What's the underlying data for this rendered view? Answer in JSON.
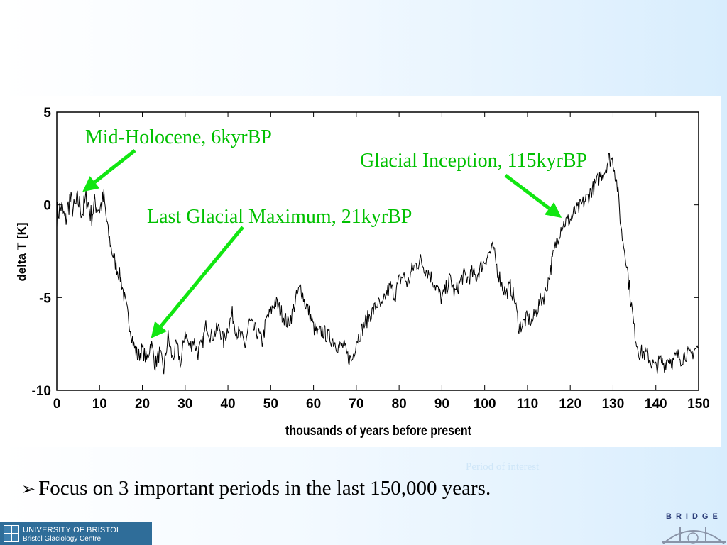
{
  "slide": {
    "bullet_mark": "➢",
    "bullet_text": "Focus on 3 important periods in the last 150,000 years.",
    "faint_text": "Period of interest"
  },
  "logos": {
    "university": "UNIVERSITY OF BRISTOL",
    "centre": "Bristol Glaciology Centre",
    "bridge": "BRIDGE"
  },
  "colors": {
    "annotation": "#00c000",
    "arrow": "#11e611",
    "line": "#000000"
  },
  "annotations": [
    {
      "id": "mid-holocene",
      "label": "Mid-Holocene, 6kyrBP",
      "target_x": 6,
      "target_y": 0.7
    },
    {
      "id": "lgm",
      "label": "Last Glacial Maximum, 21kyrBP",
      "target_x": 22,
      "target_y": -7.2
    },
    {
      "id": "glacial-inception",
      "label": "Glacial Inception, 115kyrBP",
      "target_x": 118,
      "target_y": -0.7
    }
  ],
  "chart_data": {
    "type": "line",
    "xlabel": "thousands of years before present",
    "ylabel": "delta T [K]",
    "xlim": [
      0,
      150
    ],
    "ylim": [
      -10,
      5
    ],
    "xticks": [
      0,
      10,
      20,
      30,
      40,
      50,
      60,
      70,
      80,
      90,
      100,
      110,
      120,
      130,
      140,
      150
    ],
    "yticks": [
      5,
      0,
      -5,
      -10
    ],
    "grid": false,
    "series": [
      {
        "x": [
          0,
          1,
          2,
          3,
          4,
          5,
          6,
          7,
          8,
          9,
          10,
          11,
          12,
          13,
          14,
          15,
          16,
          17,
          18,
          19,
          20,
          21,
          22,
          23,
          24,
          25,
          26,
          27,
          28,
          29,
          30,
          31,
          32,
          33,
          34,
          35,
          36,
          37,
          38,
          39,
          40,
          41,
          42,
          43,
          44,
          45,
          46,
          47,
          48,
          49,
          50,
          51,
          52,
          53,
          54,
          55,
          56,
          57,
          58,
          59,
          60,
          61,
          62,
          63,
          64,
          65,
          66,
          67,
          68,
          69,
          70,
          71,
          72,
          73,
          74,
          75,
          76,
          77,
          78,
          79,
          80,
          81,
          82,
          83,
          84,
          85,
          86,
          87,
          88,
          89,
          90,
          91,
          92,
          93,
          94,
          95,
          96,
          97,
          98,
          99,
          100,
          101,
          102,
          103,
          104,
          105,
          106,
          107,
          108,
          109,
          110,
          111,
          112,
          113,
          114,
          115,
          116,
          117,
          118,
          119,
          120,
          121,
          122,
          123,
          124,
          125,
          126,
          127,
          128,
          129,
          130,
          131,
          132,
          133,
          134,
          135,
          136,
          137,
          138,
          139,
          140,
          141,
          142,
          143,
          144,
          145,
          146,
          147,
          148,
          149,
          150
        ],
        "values": [
          -0.5,
          -0.1,
          -0.9,
          0.3,
          -0.3,
          0.2,
          -0.4,
          0.4,
          -0.6,
          0.1,
          -0.2,
          0.3,
          -1.5,
          -2.6,
          -3.4,
          -4.0,
          -5.3,
          -6.4,
          -7.6,
          -8.2,
          -7.8,
          -8.4,
          -7.4,
          -8.6,
          -8.0,
          -8.9,
          -7.1,
          -8.3,
          -7.6,
          -8.6,
          -6.8,
          -7.7,
          -7.3,
          -8.0,
          -7.5,
          -6.4,
          -7.1,
          -6.9,
          -6.6,
          -7.4,
          -6.6,
          -5.9,
          -6.8,
          -7.1,
          -7.6,
          -6.3,
          -6.7,
          -6.9,
          -7.4,
          -6.2,
          -5.8,
          -5.2,
          -5.6,
          -6.0,
          -6.4,
          -5.9,
          -5.0,
          -4.4,
          -5.3,
          -5.8,
          -6.6,
          -7.0,
          -6.8,
          -7.0,
          -7.2,
          -7.4,
          -7.7,
          -7.6,
          -8.2,
          -8.4,
          -7.3,
          -6.9,
          -6.4,
          -6.0,
          -5.7,
          -5.3,
          -5.6,
          -4.8,
          -4.4,
          -4.9,
          -4.1,
          -3.8,
          -4.3,
          -3.5,
          -3.2,
          -3.0,
          -3.4,
          -3.7,
          -4.1,
          -4.6,
          -5.1,
          -4.5,
          -4.0,
          -4.8,
          -4.3,
          -3.8,
          -4.0,
          -3.7,
          -3.9,
          -3.4,
          -3.0,
          -2.6,
          -2.4,
          -3.5,
          -4.3,
          -4.8,
          -4.4,
          -5.1,
          -6.6,
          -6.4,
          -6.1,
          -6.3,
          -5.8,
          -5.2,
          -4.9,
          -3.9,
          -2.8,
          -1.8,
          -1.1,
          -0.9,
          -0.8,
          -0.4,
          -0.2,
          0.1,
          0.4,
          0.8,
          1.1,
          1.6,
          1.8,
          2.5,
          2.4,
          1.0,
          -1.5,
          -2.8,
          -4.8,
          -6.8,
          -7.9,
          -8.0,
          -8.1,
          -8.5,
          -8.8,
          -8.4,
          -8.6,
          -8.2,
          -8.5,
          -8.1,
          -8.3,
          -8.0,
          -8.2,
          -7.8,
          -7.7
        ],
        "noise_amplitude": 0.45
      }
    ]
  }
}
